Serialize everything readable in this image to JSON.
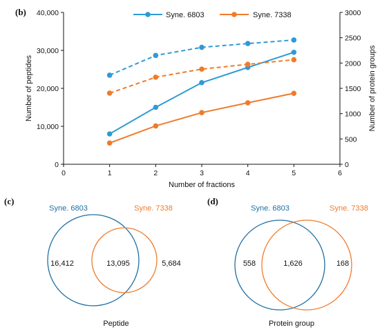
{
  "colors": {
    "blue": "#2e9bd6",
    "orange": "#f07a2a",
    "venn_blue": "#1d6fa3",
    "venn_orange": "#f07a2a",
    "axis": "#111111"
  },
  "chart_data": [
    {
      "panel": "(b)",
      "type": "line",
      "x": [
        1,
        2,
        3,
        4,
        5
      ],
      "xlabel": "Number of fractions",
      "ylabel": "Number of peptides",
      "y2label": "Number of protein groups",
      "xlim": [
        0,
        6
      ],
      "ylim": [
        0,
        40000
      ],
      "y2lim": [
        0,
        3000
      ],
      "x_ticks": [
        "0",
        "1",
        "2",
        "3",
        "4",
        "5",
        "6"
      ],
      "y_ticks": [
        "0",
        "10,000",
        "20,000",
        "30,000",
        "40,000"
      ],
      "y2_ticks": [
        "0",
        "500",
        "1000",
        "1500",
        "2000",
        "2500",
        "3000"
      ],
      "legend": [
        "Syne. 6803",
        "Syne. 7338"
      ],
      "legend_position": "top-center",
      "series": [
        {
          "name": "Syne. 6803",
          "axis": "left",
          "style": "solid",
          "color": "#2e9bd6",
          "values": [
            8000,
            15000,
            21500,
            25500,
            29500
          ]
        },
        {
          "name": "Syne. 7338",
          "axis": "left",
          "style": "solid",
          "color": "#f07a2a",
          "values": [
            5600,
            10100,
            13600,
            16200,
            18700
          ]
        },
        {
          "name": "Syne. 6803",
          "axis": "right",
          "style": "dashed",
          "color": "#2e9bd6",
          "values": [
            1760,
            2150,
            2310,
            2385,
            2455
          ]
        },
        {
          "name": "Syne. 7338",
          "axis": "right",
          "style": "dashed",
          "color": "#f07a2a",
          "values": [
            1405,
            1720,
            1880,
            1975,
            2065
          ]
        }
      ]
    },
    {
      "panel": "(c)",
      "type": "venn",
      "sets": [
        "Syne. 6803",
        "Syne. 7338"
      ],
      "only_a": "16,412",
      "both": "13,095",
      "only_b": "5,684",
      "caption": "Peptide"
    },
    {
      "panel": "(d)",
      "type": "venn",
      "sets": [
        "Syne. 6803",
        "Syne. 7338"
      ],
      "only_a": "558",
      "both": "1,626",
      "only_b": "168",
      "caption": "Protein group"
    }
  ]
}
